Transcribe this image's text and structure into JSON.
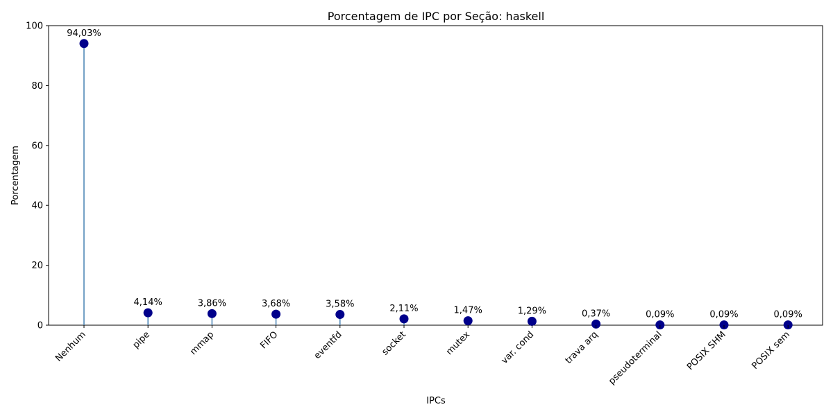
{
  "chart_data": {
    "type": "lollipop",
    "title": "Porcentagem de IPC por Seção: haskell",
    "xlabel": "IPCs",
    "ylabel": "Porcentagem",
    "ylim": [
      0,
      100
    ],
    "yticks": [
      "0",
      "20",
      "40",
      "60",
      "80",
      "100"
    ],
    "categories": [
      "Nenhum",
      "pipe",
      "mmap",
      "FIFO",
      "eventfd",
      "socket",
      "mutex",
      "var. cond",
      "trava arq",
      "pseudoterminal",
      "POSIX SHM",
      "POSIX sem"
    ],
    "values": [
      94.03,
      4.14,
      3.86,
      3.68,
      3.58,
      2.11,
      1.47,
      1.29,
      0.37,
      0.09,
      0.09,
      0.09
    ],
    "value_labels": [
      "94,03%",
      "4,14%",
      "3,86%",
      "3,68%",
      "3,58%",
      "2,11%",
      "1,47%",
      "1,29%",
      "0,37%",
      "0,09%",
      "0,09%",
      "0,09%"
    ],
    "grid": false,
    "colors": {
      "marker": "#00008b",
      "stem": "#4682b4"
    }
  }
}
